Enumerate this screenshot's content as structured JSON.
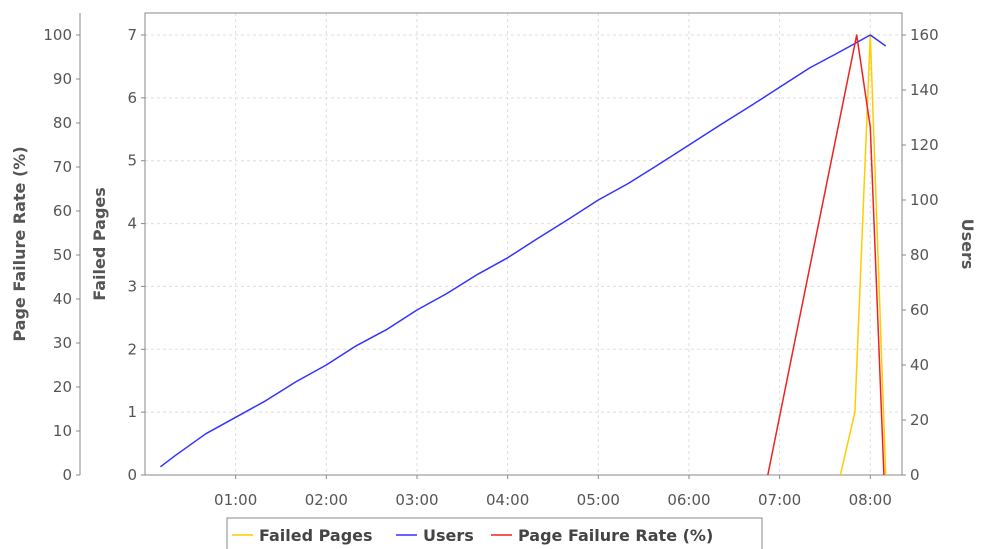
{
  "chart_data": {
    "type": "line",
    "grid": true,
    "legend_position": "bottom",
    "x_ticks": [
      "01:00",
      "02:00",
      "03:00",
      "04:00",
      "05:00",
      "06:00",
      "07:00",
      "08:00"
    ],
    "x_range_hours": [
      0,
      8.35
    ],
    "axes": {
      "left_outer": {
        "label": "Page Failure Rate (%)",
        "range": [
          0,
          105
        ],
        "ticks": [
          0,
          10,
          20,
          30,
          40,
          50,
          60,
          70,
          80,
          90,
          100
        ]
      },
      "left_inner": {
        "label": "Failed Pages",
        "range": [
          0,
          7.35
        ],
        "ticks": [
          0,
          1,
          2,
          3,
          4,
          5,
          6,
          7
        ]
      },
      "right": {
        "label": "Users",
        "range": [
          0,
          168
        ],
        "ticks": [
          0,
          20,
          40,
          60,
          80,
          100,
          120,
          140,
          160
        ]
      }
    },
    "series": [
      {
        "name": "Failed Pages",
        "axis": "left_inner",
        "color": "#ffcc00",
        "points": [
          [
            7.67,
            0
          ],
          [
            7.83,
            1
          ],
          [
            8.0,
            7
          ],
          [
            8.17,
            0
          ]
        ]
      },
      {
        "name": "Users",
        "axis": "right",
        "color": "#3333ff",
        "points": [
          [
            0.17,
            3
          ],
          [
            0.33,
            7
          ],
          [
            0.5,
            11
          ],
          [
            0.67,
            15
          ],
          [
            1.0,
            21
          ],
          [
            1.33,
            27
          ],
          [
            1.67,
            34
          ],
          [
            2.0,
            40
          ],
          [
            2.33,
            47
          ],
          [
            2.67,
            53
          ],
          [
            3.0,
            60
          ],
          [
            3.33,
            66
          ],
          [
            3.67,
            73
          ],
          [
            4.0,
            79
          ],
          [
            4.33,
            86
          ],
          [
            4.67,
            93
          ],
          [
            5.0,
            100
          ],
          [
            5.33,
            106
          ],
          [
            5.67,
            113
          ],
          [
            6.0,
            120
          ],
          [
            6.33,
            127
          ],
          [
            6.67,
            134
          ],
          [
            7.0,
            141
          ],
          [
            7.33,
            148
          ],
          [
            7.67,
            154
          ],
          [
            8.0,
            160
          ],
          [
            8.17,
            156
          ]
        ]
      },
      {
        "name": "Page Failure Rate (%)",
        "axis": "left_outer",
        "color": "#ee2222",
        "points": [
          [
            6.87,
            0
          ],
          [
            7.85,
            100
          ],
          [
            8.0,
            79
          ],
          [
            8.15,
            0
          ]
        ]
      }
    ]
  }
}
